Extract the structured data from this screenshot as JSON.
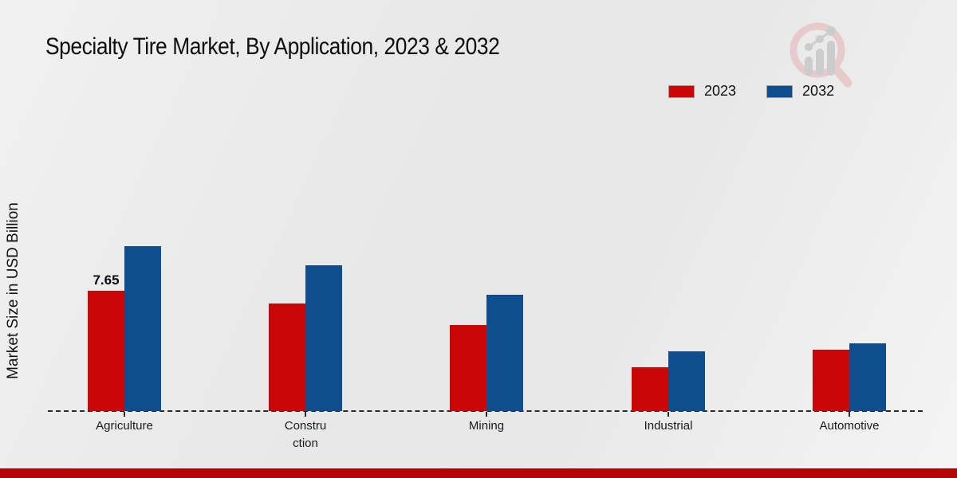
{
  "title": "Specialty Tire Market, By Application, 2023 & 2032",
  "ylabel": "Market Size in USD Billion",
  "legend": [
    {
      "label": "2023",
      "color": "#cb0606"
    },
    {
      "label": "2032",
      "color": "#0e4e8e"
    }
  ],
  "colors": {
    "series_2023": "#cb0606",
    "series_2032": "#0e4e8e",
    "axis": "#2b2b2b",
    "bottom_band": "#b30505"
  },
  "watermark_icon": "magnifier-bar-chart-logo-icon",
  "chart_data": {
    "type": "bar",
    "title": "Specialty Tire Market, By Application, 2023 & 2032",
    "ylabel": "Market Size in USD Billion",
    "xlabel": "",
    "categories": [
      "Agriculture",
      "Constru\nction",
      "Mining",
      "Industrial",
      "Automotive"
    ],
    "series": [
      {
        "name": "2023",
        "color": "#cb0606",
        "values": [
          7.65,
          6.85,
          5.45,
          2.8,
          3.9
        ]
      },
      {
        "name": "2032",
        "color": "#0e4e8e",
        "values": [
          10.5,
          9.25,
          7.4,
          3.8,
          4.3
        ]
      }
    ],
    "data_labels": [
      {
        "series": "2023",
        "category": "Agriculture",
        "text": "7.65"
      }
    ],
    "ylim": [
      0,
      11
    ],
    "grid": false,
    "axis_style": "dashed-baseline-only",
    "legend_position": "top-right"
  }
}
